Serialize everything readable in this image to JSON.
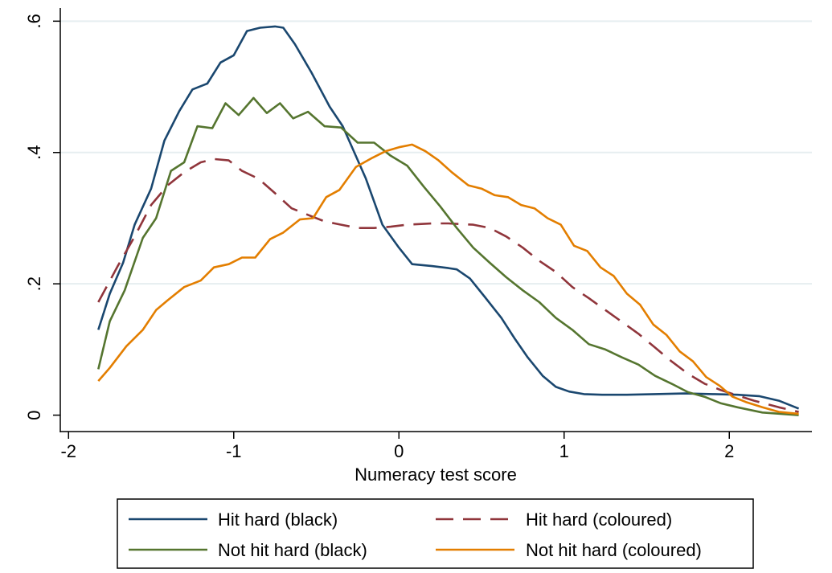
{
  "chart_data": {
    "type": "line",
    "title": "",
    "xlabel": "Numeracy test score",
    "ylabel": "",
    "xlim": [
      -2.05,
      2.5
    ],
    "ylim": [
      -0.025,
      0.62
    ],
    "xticks": [
      {
        "value": -2,
        "label": "-2"
      },
      {
        "value": -1,
        "label": "-1"
      },
      {
        "value": 0,
        "label": "0"
      },
      {
        "value": 1,
        "label": "1"
      },
      {
        "value": 2,
        "label": "2"
      }
    ],
    "yticks": [
      {
        "value": 0,
        "label": "0"
      },
      {
        "value": 0.2,
        "label": ".2"
      },
      {
        "value": 0.4,
        "label": ".4"
      },
      {
        "value": 0.6,
        "label": ".6"
      }
    ],
    "grid": "horizontal",
    "legend_position": "bottom",
    "series": [
      {
        "name": "Hit hard (black)",
        "color": "#1a476f",
        "dash": "solid",
        "x": [
          -1.82,
          -1.75,
          -1.67,
          -1.6,
          -1.5,
          -1.42,
          -1.33,
          -1.25,
          -1.16,
          -1.08,
          -1.0,
          -0.92,
          -0.84,
          -0.75,
          -0.7,
          -0.63,
          -0.53,
          -0.42,
          -0.34,
          -0.2,
          -0.1,
          0.0,
          0.08,
          0.2,
          0.3,
          0.35,
          0.43,
          0.52,
          0.62,
          0.7,
          0.78,
          0.87,
          0.95,
          1.03,
          1.12,
          1.23,
          1.38,
          1.55,
          1.73,
          1.9,
          2.05,
          2.18,
          2.3,
          2.42
        ],
        "y": [
          0.13,
          0.185,
          0.232,
          0.29,
          0.345,
          0.418,
          0.463,
          0.496,
          0.505,
          0.537,
          0.548,
          0.585,
          0.59,
          0.592,
          0.59,
          0.565,
          0.522,
          0.47,
          0.44,
          0.36,
          0.29,
          0.255,
          0.23,
          0.227,
          0.224,
          0.222,
          0.208,
          0.18,
          0.148,
          0.117,
          0.088,
          0.06,
          0.043,
          0.036,
          0.032,
          0.031,
          0.031,
          0.032,
          0.033,
          0.032,
          0.031,
          0.029,
          0.022,
          0.01
        ]
      },
      {
        "name": "Hit hard (coloured)",
        "color": "#90353b",
        "dash": "long",
        "x": [
          -1.82,
          -1.7,
          -1.6,
          -1.5,
          -1.4,
          -1.3,
          -1.2,
          -1.12,
          -1.03,
          -0.95,
          -0.85,
          -0.75,
          -0.65,
          -0.55,
          -0.45,
          -0.35,
          -0.25,
          -0.15,
          -0.05,
          0.05,
          0.2,
          0.3,
          0.45,
          0.55,
          0.65,
          0.75,
          0.85,
          0.95,
          1.05,
          1.15,
          1.25,
          1.35,
          1.45,
          1.55,
          1.65,
          1.75,
          1.85,
          1.95,
          2.05,
          2.15,
          2.3,
          2.42
        ],
        "y": [
          0.172,
          0.228,
          0.272,
          0.32,
          0.35,
          0.37,
          0.385,
          0.39,
          0.388,
          0.372,
          0.36,
          0.338,
          0.315,
          0.305,
          0.295,
          0.29,
          0.285,
          0.285,
          0.287,
          0.29,
          0.292,
          0.292,
          0.29,
          0.285,
          0.272,
          0.255,
          0.235,
          0.218,
          0.195,
          0.178,
          0.16,
          0.142,
          0.124,
          0.103,
          0.082,
          0.063,
          0.048,
          0.038,
          0.03,
          0.022,
          0.012,
          0.005
        ]
      },
      {
        "name": "Not hit hard (black)",
        "color": "#55752f",
        "dash": "solid",
        "x": [
          -1.82,
          -1.75,
          -1.66,
          -1.55,
          -1.47,
          -1.38,
          -1.3,
          -1.22,
          -1.13,
          -1.05,
          -0.97,
          -0.88,
          -0.8,
          -0.72,
          -0.64,
          -0.55,
          -0.45,
          -0.35,
          -0.25,
          -0.15,
          -0.05,
          0.05,
          0.15,
          0.25,
          0.35,
          0.45,
          0.55,
          0.65,
          0.75,
          0.85,
          0.95,
          1.05,
          1.15,
          1.25,
          1.35,
          1.45,
          1.55,
          1.65,
          1.75,
          1.85,
          1.95,
          2.05,
          2.2,
          2.42
        ],
        "y": [
          0.07,
          0.143,
          0.19,
          0.27,
          0.3,
          0.372,
          0.385,
          0.44,
          0.437,
          0.475,
          0.457,
          0.483,
          0.46,
          0.475,
          0.452,
          0.462,
          0.44,
          0.438,
          0.415,
          0.415,
          0.395,
          0.38,
          0.348,
          0.318,
          0.285,
          0.255,
          0.232,
          0.21,
          0.19,
          0.172,
          0.148,
          0.13,
          0.108,
          0.1,
          0.088,
          0.077,
          0.06,
          0.048,
          0.035,
          0.028,
          0.018,
          0.012,
          0.004,
          0.0
        ]
      },
      {
        "name": "Not hit hard (coloured)",
        "color": "#e37e00",
        "dash": "solid",
        "x": [
          -1.82,
          -1.75,
          -1.65,
          -1.55,
          -1.47,
          -1.4,
          -1.3,
          -1.2,
          -1.12,
          -1.03,
          -0.95,
          -0.87,
          -0.78,
          -0.7,
          -0.6,
          -0.52,
          -0.44,
          -0.36,
          -0.26,
          -0.16,
          -0.08,
          0.0,
          0.08,
          0.16,
          0.24,
          0.32,
          0.42,
          0.5,
          0.58,
          0.66,
          0.74,
          0.82,
          0.9,
          0.98,
          1.06,
          1.14,
          1.22,
          1.3,
          1.38,
          1.46,
          1.54,
          1.62,
          1.7,
          1.78,
          1.86,
          1.94,
          2.02,
          2.1,
          2.2,
          2.3,
          2.42
        ],
        "y": [
          0.052,
          0.072,
          0.105,
          0.13,
          0.16,
          0.175,
          0.195,
          0.205,
          0.225,
          0.23,
          0.24,
          0.24,
          0.268,
          0.278,
          0.298,
          0.3,
          0.332,
          0.343,
          0.378,
          0.392,
          0.402,
          0.408,
          0.412,
          0.402,
          0.388,
          0.37,
          0.35,
          0.345,
          0.335,
          0.332,
          0.32,
          0.315,
          0.3,
          0.29,
          0.258,
          0.25,
          0.225,
          0.212,
          0.185,
          0.168,
          0.138,
          0.122,
          0.097,
          0.082,
          0.058,
          0.045,
          0.028,
          0.02,
          0.012,
          0.005,
          0.002
        ]
      }
    ]
  }
}
